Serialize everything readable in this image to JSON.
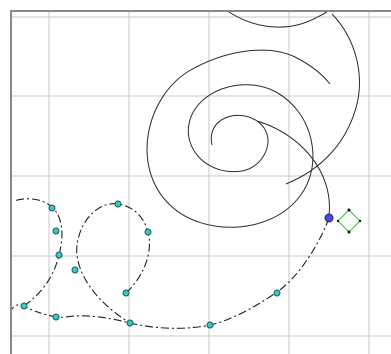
{
  "canvas": {
    "background": "#ffffff",
    "grid_color": "#c8c8c8",
    "curve_color": "#222222",
    "control_point_color": "#3fc7c0",
    "selected_point_color": "#4b4bdc",
    "handle_color": "#2fd42f",
    "icons": {
      "control_point": "control-point-icon",
      "selected_point": "selected-point-icon",
      "rotate_handle": "rotate-handle-icon"
    }
  }
}
